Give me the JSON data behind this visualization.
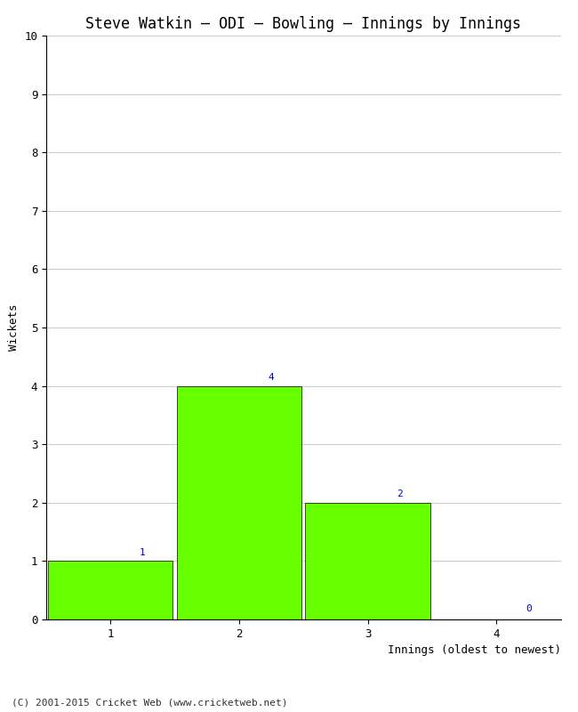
{
  "title": "Steve Watkin – ODI – Bowling – Innings by Innings",
  "xlabel": "Innings (oldest to newest)",
  "ylabel": "Wickets",
  "categories": [
    1,
    2,
    3,
    4
  ],
  "values": [
    1,
    4,
    2,
    0
  ],
  "bar_color": "#66ff00",
  "bar_edge_color": "#000000",
  "ylim": [
    0,
    10
  ],
  "yticks": [
    0,
    1,
    2,
    3,
    4,
    5,
    6,
    7,
    8,
    9,
    10
  ],
  "xticks": [
    1,
    2,
    3,
    4
  ],
  "annotation_color": "#0000cc",
  "annotation_fontsize": 8,
  "title_fontsize": 12,
  "axis_label_fontsize": 9,
  "tick_fontsize": 9,
  "footer_text": "(C) 2001-2015 Cricket Web (www.cricketweb.net)",
  "footer_fontsize": 8,
  "background_color": "#ffffff",
  "grid_color": "#cccccc",
  "bar_width": 0.97,
  "xlim_left": 0.5,
  "xlim_right": 4.5
}
